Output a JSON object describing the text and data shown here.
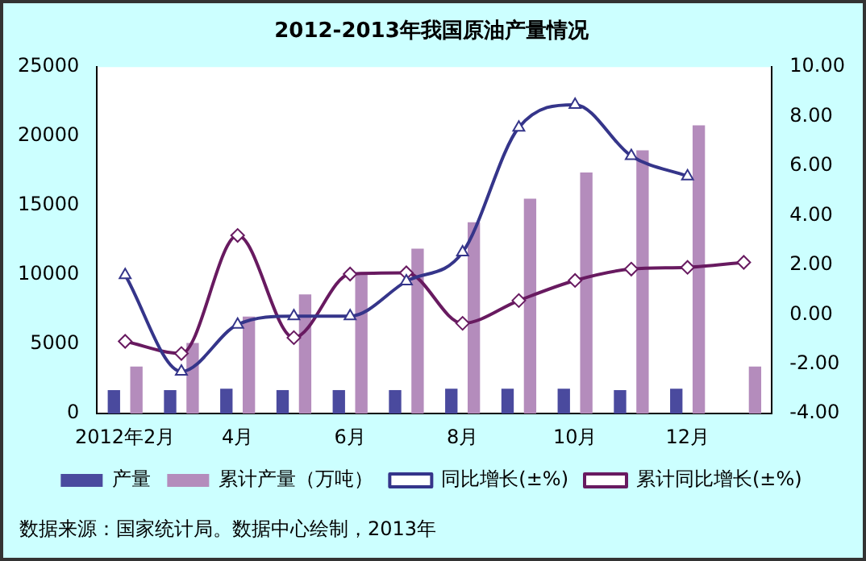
{
  "chart_data": {
    "type": "bar",
    "title": "2012-2013年我国原油产量情况",
    "categories": [
      "2012年2月",
      null,
      "4月",
      null,
      "6月",
      null,
      "8月",
      null,
      "10月",
      null,
      "12月",
      null
    ],
    "series": [
      {
        "name": "产量",
        "color": "#4a4a9e",
        "values": [
          1700,
          1700,
          1800,
          1700,
          1700,
          1700,
          1800,
          1800,
          1800,
          1700,
          1800,
          null
        ]
      },
      {
        "name": "累计产量（万吨）",
        "color": "#b48cbc",
        "values": [
          3400,
          5100,
          7000,
          8600,
          10200,
          11900,
          13800,
          15500,
          17400,
          19000,
          20800,
          3400
        ]
      },
      {
        "name": "同比增长(±%)",
        "type": "line",
        "axis": "y2",
        "marker": "triangle",
        "color": "#35358a",
        "values": [
          1.6,
          -2.3,
          -0.4,
          -0.06,
          -0.06,
          1.35,
          2.52,
          7.56,
          8.48,
          6.41,
          5.59,
          null
        ]
      },
      {
        "name": "累计同比增长(±%)",
        "type": "line",
        "axis": "y2",
        "marker": "diamond",
        "color": "#681a60",
        "values": [
          -1.08,
          -1.57,
          3.2,
          -0.93,
          1.64,
          1.69,
          -0.35,
          0.57,
          1.38,
          1.84,
          1.91,
          2.11
        ]
      }
    ],
    "ylim": [
      0,
      25000
    ],
    "yticks": [
      0,
      5000,
      10000,
      15000,
      20000,
      25000
    ],
    "y2lim": [
      -4,
      10
    ],
    "y2ticks": [
      {
        "value": -4,
        "label": "-4.00"
      },
      {
        "value": -2,
        "label": "-2.00"
      },
      {
        "value": 0,
        "label": "0.00"
      },
      {
        "value": 2,
        "label": "2.00"
      },
      {
        "value": 4,
        "label": "4.00"
      },
      {
        "value": 6,
        "label": "6.00"
      },
      {
        "value": 8,
        "label": "8.00"
      },
      {
        "value": 10,
        "label": "10.00"
      }
    ],
    "grid": false,
    "legend": "bottom",
    "annotations": [
      "数据来源：国家统计局。数据中心绘制，2013年"
    ]
  }
}
